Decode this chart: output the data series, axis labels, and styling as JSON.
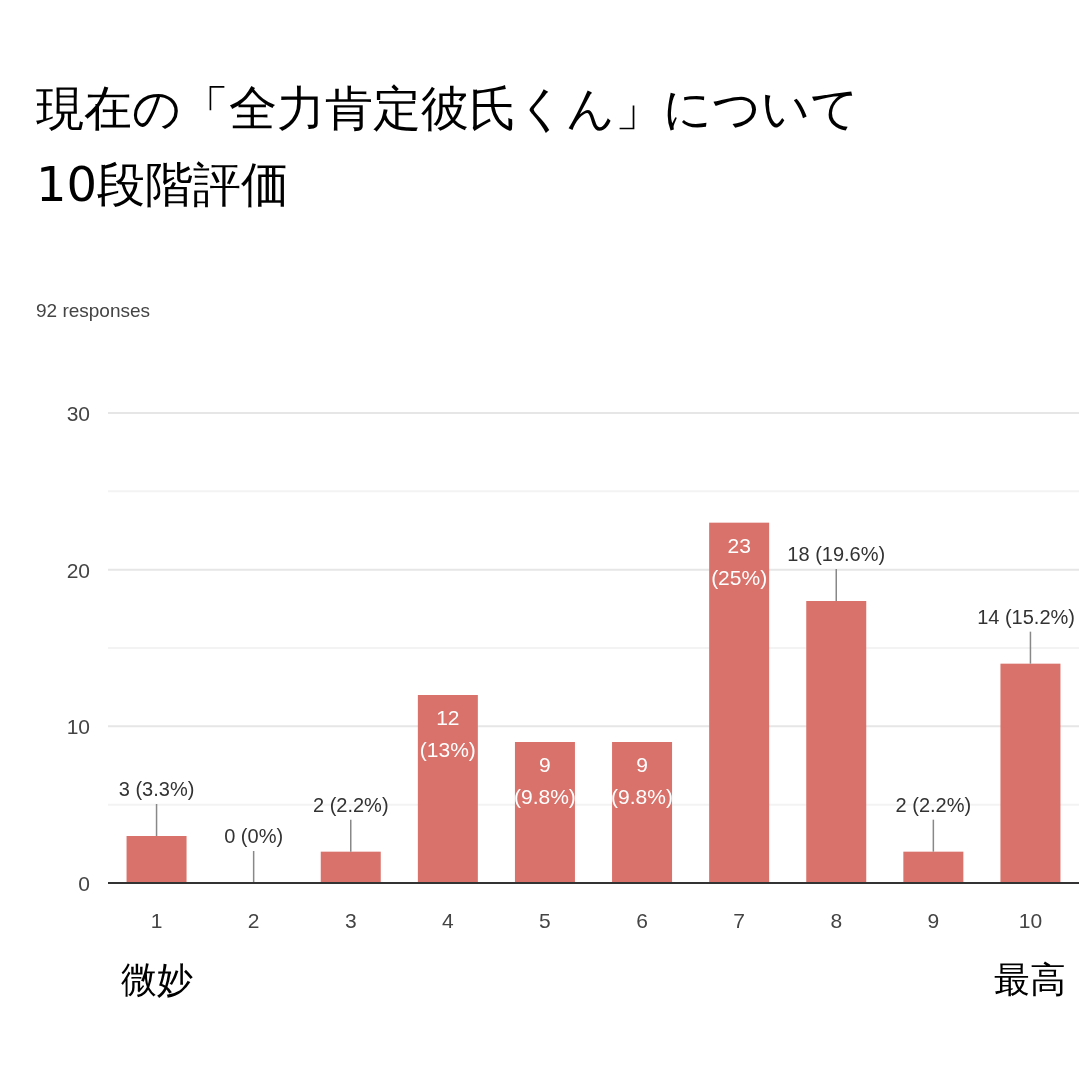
{
  "chart_data": {
    "type": "bar",
    "title": "現在の「全力肯定彼氏くん」について10段階評価",
    "subtitle": "92 responses",
    "categories": [
      "1",
      "2",
      "3",
      "4",
      "5",
      "6",
      "7",
      "8",
      "9",
      "10"
    ],
    "values": [
      3,
      0,
      2,
      12,
      9,
      9,
      23,
      18,
      2,
      14
    ],
    "value_labels": [
      "3 (3.3%)",
      "0 (0%)",
      "2 (2.2%)",
      "12 (13%)",
      "9 (9.8%)",
      "9 (9.8%)",
      "23 (25%)",
      "18 (19.6%)",
      "2 (2.2%)",
      "14 (15.2%)"
    ],
    "color": "#d9726b",
    "ylim": [
      0,
      30
    ],
    "yticks": [
      0,
      {
        "value": 5,
        "label": null
      },
      10,
      {
        "value": 15,
        "label": null
      },
      20,
      {
        "value": 25,
        "label": null
      },
      30
    ],
    "grid": "y",
    "annotations": [
      "微妙",
      "最高"
    ]
  }
}
